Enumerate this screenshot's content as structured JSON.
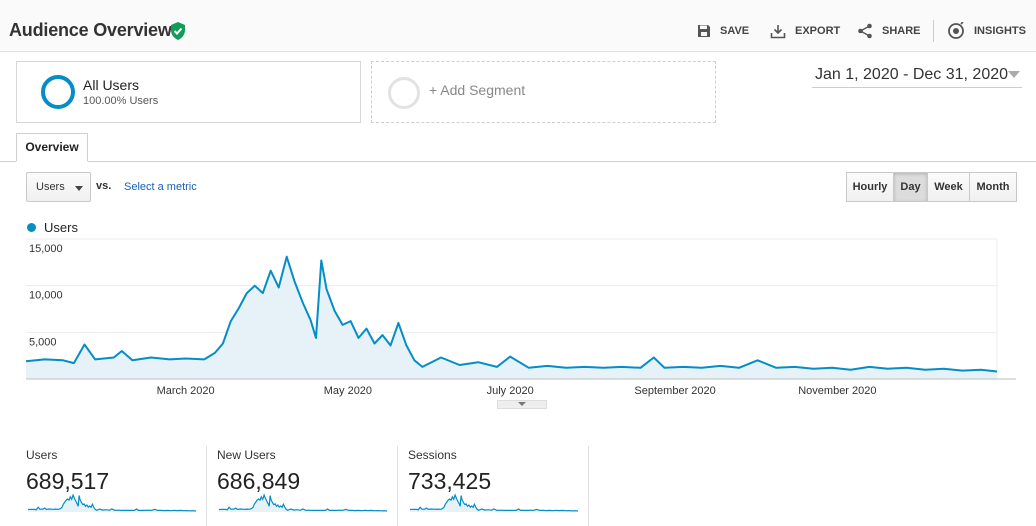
{
  "header": {
    "title": "Audience Overview",
    "save_label": "SAVE",
    "export_label": "EXPORT",
    "share_label": "SHARE",
    "insights_label": "INSIGHTS"
  },
  "segments": {
    "active": {
      "name": "All Users",
      "percentage": "100.00% Users"
    },
    "add_label": "+ Add Segment"
  },
  "date_range": "Jan 1, 2020 - Dec 31, 2020",
  "tabs": {
    "overview": "Overview"
  },
  "controls": {
    "metric": "Users",
    "vs": "vs.",
    "select_metric": "Select a metric",
    "granularity": [
      "Hourly",
      "Day",
      "Week",
      "Month"
    ],
    "active_granularity": "Day"
  },
  "colors": {
    "accent": "#058dc7",
    "fill": "#e6f2f8"
  },
  "chart_data": {
    "type": "area",
    "series": [
      {
        "name": "Users"
      }
    ],
    "ylim": [
      0,
      15000
    ],
    "y_ticks": [
      "15,000",
      "10,000",
      "5,000"
    ],
    "x_tick_labels": [
      "March 2020",
      "May 2020",
      "July 2020",
      "September 2020",
      "November 2020"
    ],
    "points": [
      [
        "2020-01-01",
        1900
      ],
      [
        "2020-01-08",
        2100
      ],
      [
        "2020-01-15",
        2000
      ],
      [
        "2020-01-19",
        1700
      ],
      [
        "2020-01-23",
        3700
      ],
      [
        "2020-01-27",
        2100
      ],
      [
        "2020-02-03",
        2300
      ],
      [
        "2020-02-06",
        3000
      ],
      [
        "2020-02-10",
        2000
      ],
      [
        "2020-02-17",
        2300
      ],
      [
        "2020-02-24",
        2100
      ],
      [
        "2020-03-01",
        2200
      ],
      [
        "2020-03-08",
        2100
      ],
      [
        "2020-03-12",
        2800
      ],
      [
        "2020-03-15",
        3800
      ],
      [
        "2020-03-18",
        6200
      ],
      [
        "2020-03-21",
        7600
      ],
      [
        "2020-03-24",
        9200
      ],
      [
        "2020-03-27",
        10000
      ],
      [
        "2020-03-30",
        9200
      ],
      [
        "2020-04-02",
        11600
      ],
      [
        "2020-04-05",
        9800
      ],
      [
        "2020-04-08",
        13100
      ],
      [
        "2020-04-11",
        10400
      ],
      [
        "2020-04-14",
        8200
      ],
      [
        "2020-04-17",
        6300
      ],
      [
        "2020-04-19",
        4400
      ],
      [
        "2020-04-21",
        12700
      ],
      [
        "2020-04-23",
        9600
      ],
      [
        "2020-04-26",
        7300
      ],
      [
        "2020-04-29",
        5800
      ],
      [
        "2020-05-02",
        6200
      ],
      [
        "2020-05-05",
        4400
      ],
      [
        "2020-05-08",
        5400
      ],
      [
        "2020-05-11",
        3800
      ],
      [
        "2020-05-14",
        4700
      ],
      [
        "2020-05-17",
        3600
      ],
      [
        "2020-05-20",
        6000
      ],
      [
        "2020-05-23",
        3600
      ],
      [
        "2020-05-26",
        2000
      ],
      [
        "2020-05-29",
        1300
      ],
      [
        "2020-06-05",
        2300
      ],
      [
        "2020-06-12",
        1500
      ],
      [
        "2020-06-19",
        1800
      ],
      [
        "2020-06-26",
        1300
      ],
      [
        "2020-07-01",
        2400
      ],
      [
        "2020-07-08",
        1200
      ],
      [
        "2020-07-15",
        1400
      ],
      [
        "2020-07-22",
        1200
      ],
      [
        "2020-07-29",
        1300
      ],
      [
        "2020-08-05",
        1200
      ],
      [
        "2020-08-12",
        1300
      ],
      [
        "2020-08-19",
        1200
      ],
      [
        "2020-08-24",
        2300
      ],
      [
        "2020-08-28",
        1200
      ],
      [
        "2020-09-04",
        1300
      ],
      [
        "2020-09-11",
        1200
      ],
      [
        "2020-09-18",
        1400
      ],
      [
        "2020-09-25",
        1200
      ],
      [
        "2020-10-02",
        2000
      ],
      [
        "2020-10-09",
        1200
      ],
      [
        "2020-10-16",
        1300
      ],
      [
        "2020-10-23",
        1100
      ],
      [
        "2020-10-30",
        1200
      ],
      [
        "2020-11-06",
        1000
      ],
      [
        "2020-11-13",
        1300
      ],
      [
        "2020-11-20",
        1100
      ],
      [
        "2020-11-27",
        1200
      ],
      [
        "2020-12-04",
        1000
      ],
      [
        "2020-12-11",
        1100
      ],
      [
        "2020-12-18",
        900
      ],
      [
        "2020-12-25",
        1000
      ],
      [
        "2020-12-31",
        800
      ]
    ]
  },
  "stats": [
    {
      "label": "Users",
      "value": "689,517"
    },
    {
      "label": "New Users",
      "value": "686,849"
    },
    {
      "label": "Sessions",
      "value": "733,425"
    }
  ]
}
